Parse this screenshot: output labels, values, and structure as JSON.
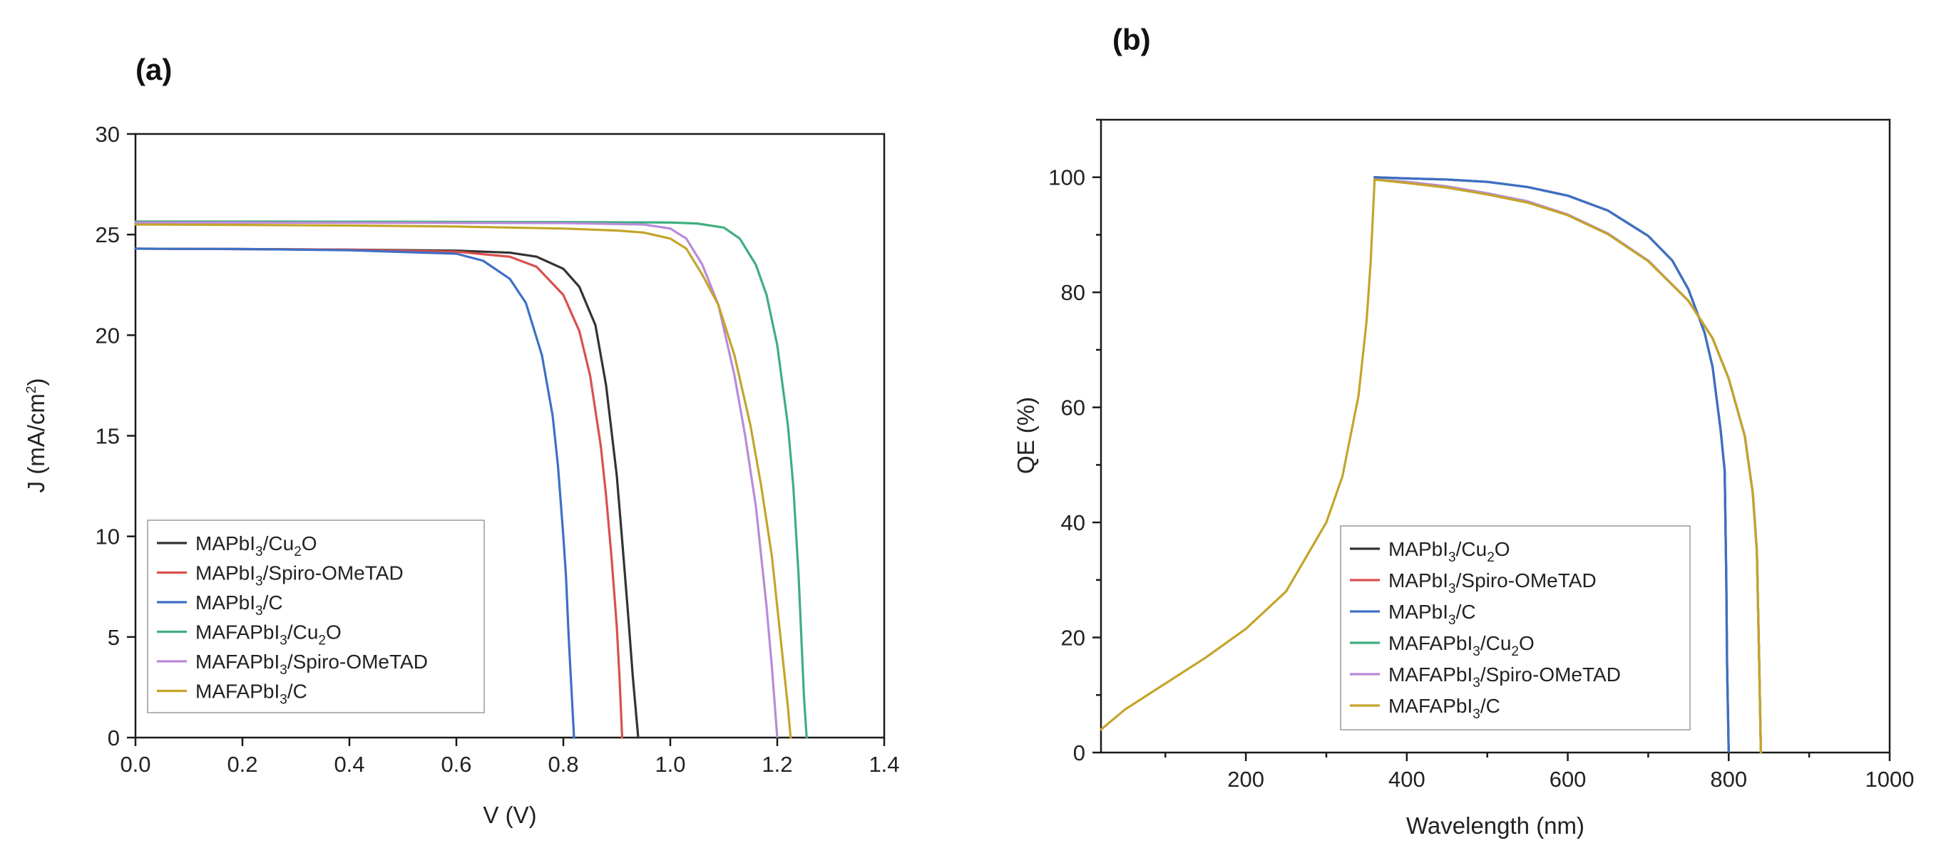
{
  "chart_data": [
    {
      "type": "line",
      "panel": "(a)",
      "title": "",
      "xlabel": "V (V)",
      "ylabel": "J (mA/cm²)",
      "xlim": [
        0.0,
        1.4
      ],
      "ylim": [
        0,
        30
      ],
      "x_ticks": [
        "0.0",
        "0.2",
        "0.4",
        "0.6",
        "0.8",
        "1.0",
        "1.2",
        "1.4"
      ],
      "y_ticks": [
        "0",
        "5",
        "10",
        "15",
        "20",
        "25",
        "30"
      ],
      "legend": {
        "placement": "bottom-left"
      },
      "series": [
        {
          "name": "MAPbI3/Cu2O",
          "label_parts": [
            "MAPbI",
            "3",
            "/Cu",
            "2",
            "O"
          ],
          "color": "#333333",
          "points": [
            [
              0,
              24.3
            ],
            [
              0.2,
              24.28
            ],
            [
              0.4,
              24.25
            ],
            [
              0.6,
              24.2
            ],
            [
              0.7,
              24.1
            ],
            [
              0.75,
              23.9
            ],
            [
              0.8,
              23.3
            ],
            [
              0.83,
              22.4
            ],
            [
              0.86,
              20.5
            ],
            [
              0.88,
              17.5
            ],
            [
              0.9,
              13.0
            ],
            [
              0.91,
              9.8
            ],
            [
              0.92,
              6.5
            ],
            [
              0.93,
              3.0
            ],
            [
              0.94,
              0
            ]
          ]
        },
        {
          "name": "MAPbI3/Spiro-OMeTAD",
          "label_parts": [
            "MAPbI",
            "3",
            "/Spiro-OMeTAD",
            "",
            ""
          ],
          "color": "#d9504f",
          "points": [
            [
              0,
              24.3
            ],
            [
              0.2,
              24.28
            ],
            [
              0.4,
              24.25
            ],
            [
              0.6,
              24.15
            ],
            [
              0.7,
              23.9
            ],
            [
              0.75,
              23.4
            ],
            [
              0.8,
              22.0
            ],
            [
              0.83,
              20.2
            ],
            [
              0.85,
              18.0
            ],
            [
              0.87,
              14.5
            ],
            [
              0.88,
              12.0
            ],
            [
              0.89,
              9.0
            ],
            [
              0.9,
              5.5
            ],
            [
              0.905,
              3.0
            ],
            [
              0.91,
              0
            ]
          ]
        },
        {
          "name": "MAPbI3/C",
          "label_parts": [
            "MAPbI",
            "3",
            "/C",
            "",
            ""
          ],
          "color": "#3d6fc4",
          "points": [
            [
              0,
              24.3
            ],
            [
              0.2,
              24.28
            ],
            [
              0.4,
              24.22
            ],
            [
              0.6,
              24.05
            ],
            [
              0.65,
              23.7
            ],
            [
              0.7,
              22.8
            ],
            [
              0.73,
              21.6
            ],
            [
              0.76,
              19.0
            ],
            [
              0.78,
              16.0
            ],
            [
              0.79,
              13.5
            ],
            [
              0.8,
              10.0
            ],
            [
              0.805,
              8.0
            ],
            [
              0.81,
              5.0
            ],
            [
              0.815,
              2.5
            ],
            [
              0.82,
              0
            ]
          ]
        },
        {
          "name": "MAFAPbI3/Cu2O",
          "label_parts": [
            "MAFAPbI",
            "3",
            "/Cu",
            "2",
            "O"
          ],
          "color": "#3fae7f",
          "points": [
            [
              0,
              25.65
            ],
            [
              0.2,
              25.65
            ],
            [
              0.4,
              25.64
            ],
            [
              0.6,
              25.63
            ],
            [
              0.8,
              25.62
            ],
            [
              1.0,
              25.6
            ],
            [
              1.05,
              25.55
            ],
            [
              1.1,
              25.35
            ],
            [
              1.13,
              24.8
            ],
            [
              1.16,
              23.5
            ],
            [
              1.18,
              22.0
            ],
            [
              1.2,
              19.5
            ],
            [
              1.22,
              15.5
            ],
            [
              1.23,
              12.5
            ],
            [
              1.24,
              8.0
            ],
            [
              1.245,
              5.0
            ],
            [
              1.25,
              2.0
            ],
            [
              1.255,
              0
            ]
          ]
        },
        {
          "name": "MAFAPbI3/Spiro-OMeTAD",
          "label_parts": [
            "MAFAPbI",
            "3",
            "/Spiro-OMeTAD",
            "",
            ""
          ],
          "color": "#b98ad9",
          "points": [
            [
              0,
              25.6
            ],
            [
              0.2,
              25.6
            ],
            [
              0.4,
              25.59
            ],
            [
              0.6,
              25.58
            ],
            [
              0.8,
              25.57
            ],
            [
              0.95,
              25.5
            ],
            [
              1.0,
              25.3
            ],
            [
              1.03,
              24.8
            ],
            [
              1.06,
              23.5
            ],
            [
              1.09,
              21.5
            ],
            [
              1.12,
              18.0
            ],
            [
              1.14,
              15.0
            ],
            [
              1.16,
              11.5
            ],
            [
              1.17,
              9.0
            ],
            [
              1.18,
              6.5
            ],
            [
              1.19,
              3.5
            ],
            [
              1.2,
              0
            ]
          ]
        },
        {
          "name": "MAFAPbI3/C",
          "label_parts": [
            "MAFAPbI",
            "3",
            "/C",
            "",
            ""
          ],
          "color": "#c4a42a",
          "points": [
            [
              0,
              25.5
            ],
            [
              0.2,
              25.48
            ],
            [
              0.4,
              25.45
            ],
            [
              0.6,
              25.4
            ],
            [
              0.8,
              25.3
            ],
            [
              0.9,
              25.2
            ],
            [
              0.95,
              25.1
            ],
            [
              1.0,
              24.8
            ],
            [
              1.03,
              24.3
            ],
            [
              1.06,
              23.0
            ],
            [
              1.09,
              21.5
            ],
            [
              1.12,
              19.0
            ],
            [
              1.15,
              15.5
            ],
            [
              1.17,
              12.5
            ],
            [
              1.19,
              9.0
            ],
            [
              1.2,
              6.5
            ],
            [
              1.21,
              4.0
            ],
            [
              1.22,
              1.5
            ],
            [
              1.225,
              0
            ]
          ]
        }
      ]
    },
    {
      "type": "line",
      "panel": "(b)",
      "title": "",
      "xlabel": "Wavelength (nm)",
      "ylabel": "QE (%)",
      "xlim": [
        20,
        1000
      ],
      "ylim": [
        0,
        110
      ],
      "x_ticks": [
        "200",
        "400",
        "600",
        "800",
        "1000"
      ],
      "y_ticks": [
        "0",
        "20",
        "40",
        "60",
        "80",
        "100"
      ],
      "legend": {
        "placement": "bottom-center"
      },
      "series": [
        {
          "name": "MAPbI3/Cu2O",
          "label_parts": [
            "MAPbI",
            "3",
            "/Cu",
            "2",
            "O"
          ],
          "color": "#333333",
          "points": [
            [
              360,
              100
            ],
            [
              400,
              99.8
            ],
            [
              450,
              99.6
            ],
            [
              500,
              99.2
            ],
            [
              550,
              98.3
            ],
            [
              600,
              96.8
            ],
            [
              650,
              94.2
            ],
            [
              700,
              89.8
            ],
            [
              730,
              85.5
            ],
            [
              750,
              80.5
            ],
            [
              770,
              73.0
            ],
            [
              780,
              67.0
            ],
            [
              790,
              56.0
            ],
            [
              795,
              49.0
            ],
            [
              797,
              30.0
            ],
            [
              798,
              15.0
            ],
            [
              800,
              0
            ]
          ]
        },
        {
          "name": "MAPbI3/Spiro-OMeTAD",
          "label_parts": [
            "MAPbI",
            "3",
            "/Spiro-OMeTAD",
            "",
            ""
          ],
          "color": "#d9504f",
          "points": [
            [
              360,
              99.6
            ],
            [
              400,
              99.2
            ],
            [
              450,
              98.4
            ],
            [
              500,
              97.2
            ],
            [
              550,
              95.8
            ],
            [
              600,
              93.5
            ],
            [
              650,
              90.2
            ],
            [
              700,
              85.5
            ],
            [
              750,
              78.5
            ],
            [
              780,
              72.0
            ],
            [
              800,
              65.0
            ],
            [
              820,
              55.0
            ],
            [
              830,
              45.0
            ],
            [
              835,
              35.0
            ],
            [
              838,
              15.0
            ],
            [
              840,
              0
            ]
          ]
        },
        {
          "name": "MAPbI3/C",
          "label_parts": [
            "MAPbI",
            "3",
            "/C",
            "",
            ""
          ],
          "color": "#3d6fc4",
          "points": [
            [
              360,
              100
            ],
            [
              400,
              99.8
            ],
            [
              450,
              99.6
            ],
            [
              500,
              99.2
            ],
            [
              550,
              98.3
            ],
            [
              600,
              96.8
            ],
            [
              650,
              94.2
            ],
            [
              700,
              89.8
            ],
            [
              730,
              85.5
            ],
            [
              750,
              80.5
            ],
            [
              770,
              73.0
            ],
            [
              780,
              67.0
            ],
            [
              790,
              56.0
            ],
            [
              795,
              49.0
            ],
            [
              797,
              30.0
            ],
            [
              798,
              15.0
            ],
            [
              800,
              0
            ]
          ]
        },
        {
          "name": "MAFAPbI3/Cu2O",
          "label_parts": [
            "MAFAPbI",
            "3",
            "/Cu",
            "2",
            "O"
          ],
          "color": "#3fae7f",
          "points": [
            [
              360,
              99.6
            ],
            [
              400,
              99.2
            ],
            [
              450,
              98.4
            ],
            [
              500,
              97.2
            ],
            [
              550,
              95.8
            ],
            [
              600,
              93.5
            ],
            [
              650,
              90.2
            ],
            [
              700,
              85.5
            ],
            [
              750,
              78.5
            ],
            [
              780,
              72.0
            ],
            [
              800,
              65.0
            ],
            [
              820,
              55.0
            ],
            [
              830,
              45.0
            ],
            [
              835,
              35.0
            ],
            [
              838,
              15.0
            ],
            [
              840,
              0
            ]
          ]
        },
        {
          "name": "MAFAPbI3/Spiro-OMeTAD",
          "label_parts": [
            "MAFAPbI",
            "3",
            "/Spiro-OMeTAD",
            "",
            ""
          ],
          "color": "#b98ad9",
          "points": [
            [
              360,
              99.6
            ],
            [
              400,
              99.2
            ],
            [
              450,
              98.4
            ],
            [
              500,
              97.2
            ],
            [
              550,
              95.8
            ],
            [
              600,
              93.5
            ],
            [
              650,
              90.2
            ],
            [
              700,
              85.5
            ],
            [
              750,
              78.5
            ],
            [
              780,
              72.0
            ],
            [
              800,
              65.0
            ],
            [
              820,
              55.0
            ],
            [
              830,
              45.0
            ],
            [
              835,
              35.0
            ],
            [
              838,
              15.0
            ],
            [
              840,
              0
            ]
          ]
        },
        {
          "name": "MAFAPbI3/C",
          "label_parts": [
            "MAFAPbI",
            "3",
            "/C",
            "",
            ""
          ],
          "color": "#c4a42a",
          "points": [
            [
              20,
              4
            ],
            [
              50,
              7.5
            ],
            [
              100,
              12
            ],
            [
              150,
              16.5
            ],
            [
              200,
              21.5
            ],
            [
              250,
              28
            ],
            [
              300,
              40
            ],
            [
              320,
              48
            ],
            [
              340,
              62
            ],
            [
              350,
              75
            ],
            [
              355,
              85
            ],
            [
              360,
              99.6
            ],
            [
              400,
              99.0
            ],
            [
              450,
              98.2
            ],
            [
              500,
              97.0
            ],
            [
              550,
              95.6
            ],
            [
              600,
              93.4
            ],
            [
              650,
              90.1
            ],
            [
              700,
              85.4
            ],
            [
              750,
              78.5
            ],
            [
              780,
              72.0
            ],
            [
              800,
              65.0
            ],
            [
              820,
              55.0
            ],
            [
              830,
              45.0
            ],
            [
              835,
              35.0
            ],
            [
              838,
              15.0
            ],
            [
              840,
              0
            ]
          ]
        }
      ]
    }
  ]
}
